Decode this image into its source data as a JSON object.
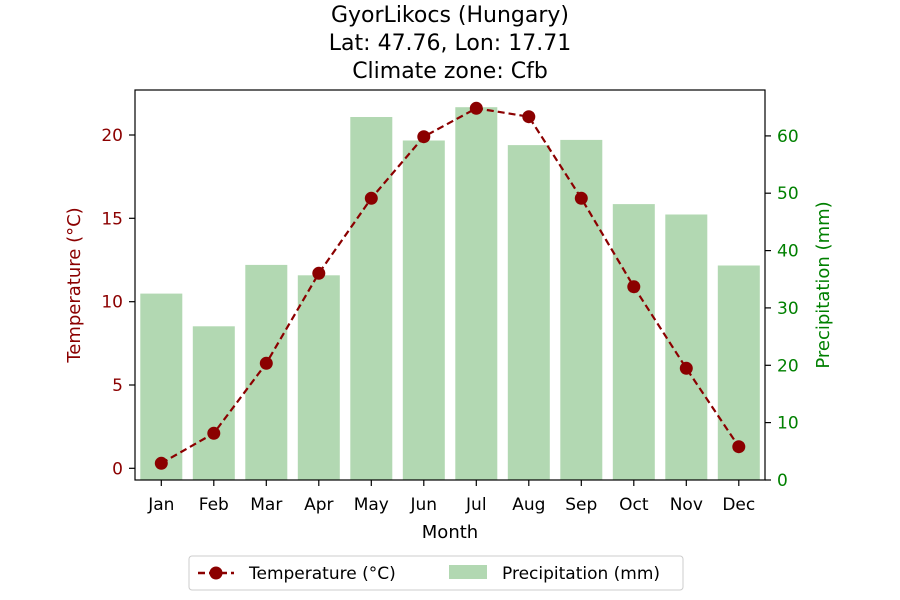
{
  "chart_data": {
    "type": "bar+line",
    "title_lines": [
      "GyorLikocs (Hungary)",
      "Lat: 47.76, Lon: 17.71",
      "Climate zone: Cfb"
    ],
    "xlabel": "Month",
    "ylabel_left": "Temperature (°C)",
    "ylabel_right": "Precipitation (mm)",
    "categories": [
      "Jan",
      "Feb",
      "Mar",
      "Apr",
      "May",
      "Jun",
      "Jul",
      "Aug",
      "Sep",
      "Oct",
      "Nov",
      "Dec"
    ],
    "ylim_left": [
      -0.7,
      22.7
    ],
    "ylim_right": [
      0,
      68
    ],
    "yticks_left": [
      0,
      5,
      10,
      15,
      20
    ],
    "yticks_right": [
      0,
      10,
      20,
      30,
      40,
      50,
      60
    ],
    "series": [
      {
        "name": "Temperature (°C)",
        "type": "line",
        "axis": "left",
        "values": [
          0.3,
          2.1,
          6.3,
          11.7,
          16.2,
          19.9,
          21.6,
          21.1,
          16.2,
          10.9,
          6.0,
          1.3
        ]
      },
      {
        "name": "Precipitation (mm)",
        "type": "bar",
        "axis": "right",
        "values": [
          32.5,
          26.8,
          37.5,
          35.7,
          63.3,
          59.2,
          65.0,
          58.4,
          59.3,
          48.1,
          46.3,
          37.4
        ]
      }
    ],
    "colors": {
      "temperature": "#8b0000",
      "precipitation": "#b2d8b2",
      "right_axis": "#008000",
      "axis": "#000000"
    },
    "legend_placement": "bottom-center",
    "grid": false
  }
}
